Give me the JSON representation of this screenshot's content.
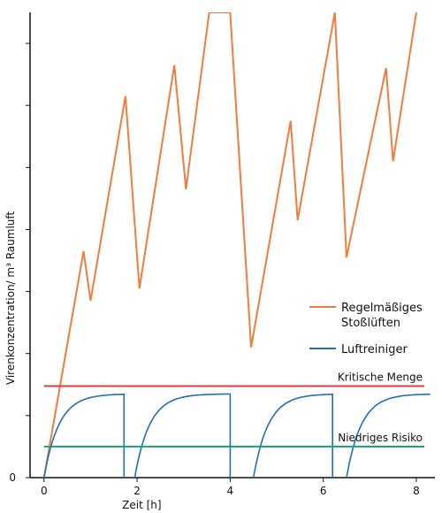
{
  "chart_data": {
    "type": "line",
    "xlabel": "Zeit [h]",
    "ylabel": "Virenkonzentration/ m³ Raumluft",
    "xlim": [
      -0.3,
      8.4
    ],
    "ylim": [
      0,
      15
    ],
    "xticks": [
      0,
      2,
      4,
      6,
      8
    ],
    "xtick_labels": [
      "0",
      "2",
      "4",
      "6",
      "8"
    ],
    "yticks": [
      0,
      2,
      4,
      6,
      8,
      10,
      12,
      14
    ],
    "ytick_labels": [
      "0"
    ],
    "grid": false,
    "legend_position": "right",
    "legend": [
      {
        "label_lines": [
          "Regelmäßiges",
          "Stoßlüften"
        ],
        "color": "#f07c3e"
      },
      {
        "label_lines": [
          "Luftreiniger"
        ],
        "color": "#1f6fba"
      }
    ],
    "series": [
      {
        "name": "Regelmäßiges Stoßlüften",
        "color": "#f07c3e",
        "x": [
          0.0,
          0.85,
          1.0,
          1.75,
          2.05,
          2.8,
          3.05,
          3.55,
          4.0,
          4.45,
          5.3,
          5.45,
          6.25,
          6.5,
          7.35,
          7.5,
          8.0
        ],
        "y": [
          0.0,
          7.3,
          5.7,
          12.3,
          6.1,
          13.3,
          9.3,
          15.0,
          15.0,
          4.2,
          11.5,
          8.3,
          15.0,
          7.1,
          13.2,
          10.2,
          15.0
        ]
      },
      {
        "name": "Luftreiniger",
        "color": "#1f6fba",
        "segments": [
          {
            "x0": 0.0,
            "x1": 1.72,
            "drop_to": 0.0
          },
          {
            "x0": 1.95,
            "x1": 4.0,
            "drop_to": 0.0
          },
          {
            "x0": 4.5,
            "x1": 6.2,
            "drop_to": 0.0
          },
          {
            "x0": 6.5,
            "x1": 8.3
          }
        ],
        "plateau": 2.7
      }
    ],
    "reference_lines": [
      {
        "label": "Kritische Menge",
        "y": 2.95,
        "color": "#e63b3b"
      },
      {
        "label": "Niedriges Risiko",
        "y": 1.0,
        "color": "#1aa06d"
      }
    ]
  }
}
